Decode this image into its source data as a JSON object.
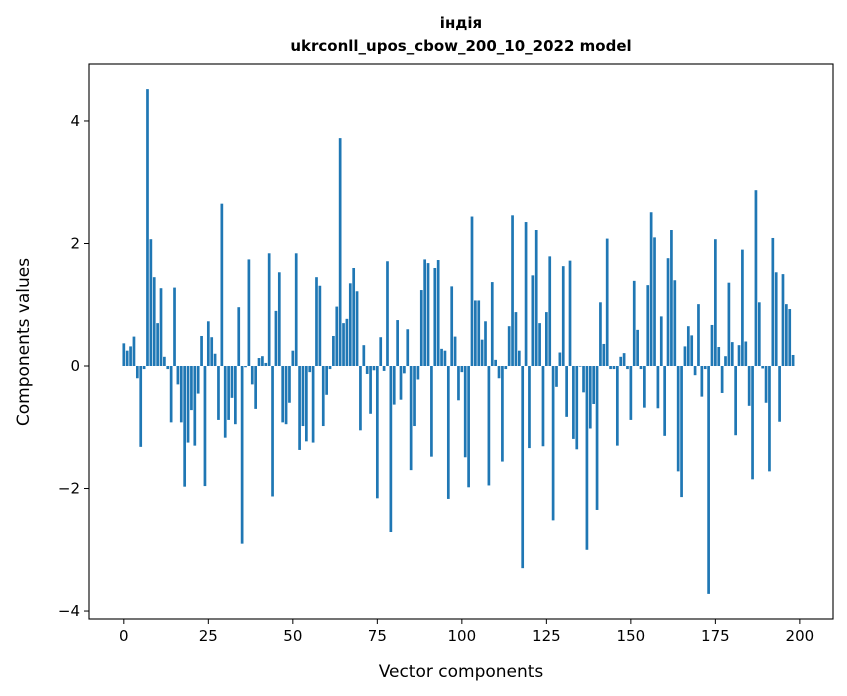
{
  "chart_data": {
    "type": "bar",
    "title": "індія",
    "subtitle": "ukrconll_upos_cbow_200_10_2022 model",
    "xlabel": "Vector components",
    "ylabel": "Components values",
    "xlim": [
      -10.3,
      209.8
    ],
    "ylim": [
      -4.13,
      4.93
    ],
    "xticks": [
      0,
      25,
      50,
      75,
      100,
      125,
      150,
      175,
      200
    ],
    "yticks": [
      -4,
      -2,
      0,
      2,
      4
    ],
    "ytick_labels": [
      "−4",
      "−2",
      "0",
      "2",
      "4"
    ],
    "grid": false,
    "bar_color": "#1f77b4",
    "values": [
      0.37,
      0.25,
      0.32,
      0.48,
      -0.2,
      -1.32,
      -0.05,
      4.52,
      2.07,
      1.45,
      0.7,
      1.27,
      0.15,
      -0.05,
      -0.92,
      1.28,
      -0.3,
      -0.92,
      -1.97,
      -1.25,
      -0.72,
      -1.3,
      -0.45,
      0.49,
      -1.96,
      0.73,
      0.47,
      0.2,
      -0.88,
      2.65,
      -1.17,
      -0.88,
      -0.52,
      -0.95,
      0.96,
      -2.9,
      -0.02,
      1.74,
      -0.3,
      -0.7,
      0.13,
      0.16,
      0.05,
      1.84,
      -2.13,
      0.9,
      1.53,
      -0.92,
      -0.95,
      -0.6,
      0.25,
      1.84,
      -1.37,
      -0.98,
      -1.23,
      -0.1,
      -1.25,
      1.45,
      1.31,
      -0.98,
      -0.47,
      -0.05,
      0.49,
      0.97,
      3.72,
      0.7,
      0.77,
      1.35,
      1.6,
      1.22,
      -1.05,
      0.34,
      -0.13,
      -0.78,
      -0.07,
      -2.16,
      0.47,
      -0.08,
      1.71,
      -2.71,
      -0.63,
      0.75,
      -0.55,
      -0.12,
      0.6,
      -1.7,
      -0.98,
      -0.22,
      1.24,
      1.74,
      1.68,
      -1.48,
      1.6,
      1.73,
      0.28,
      0.25,
      -2.17,
      1.3,
      0.48,
      -0.56,
      -0.1,
      -1.49,
      -1.98,
      2.44,
      1.07,
      1.07,
      0.43,
      0.73,
      -1.95,
      1.37,
      0.1,
      -0.2,
      -1.56,
      -0.05,
      0.65,
      2.46,
      0.88,
      0.25,
      -3.3,
      2.35,
      -1.34,
      1.48,
      2.22,
      0.7,
      -1.31,
      0.88,
      1.79,
      -2.52,
      -0.34,
      0.22,
      1.63,
      -0.83,
      1.72,
      -1.19,
      -1.36,
      -0.01,
      -0.43,
      -3.0,
      -1.02,
      -0.62,
      -2.35,
      1.04,
      0.36,
      2.08,
      -0.05,
      -0.05,
      -1.3,
      0.15,
      0.21,
      -0.05,
      -0.88,
      1.39,
      0.59,
      -0.05,
      -0.68,
      1.32,
      2.51,
      2.1,
      -0.69,
      0.81,
      -1.14,
      1.76,
      2.22,
      1.4,
      -1.72,
      -2.14,
      0.32,
      0.65,
      0.5,
      -0.15,
      1.01,
      -0.5,
      -0.05,
      -3.72,
      0.67,
      2.07,
      0.31,
      -0.44,
      0.16,
      1.36,
      0.39,
      -1.13,
      0.34,
      1.9,
      0.4,
      -0.65,
      -1.85,
      2.87,
      1.04,
      -0.04,
      -0.6,
      -1.72,
      2.09,
      1.53,
      -0.91,
      1.5,
      1.01,
      0.93,
      0.18
    ]
  }
}
